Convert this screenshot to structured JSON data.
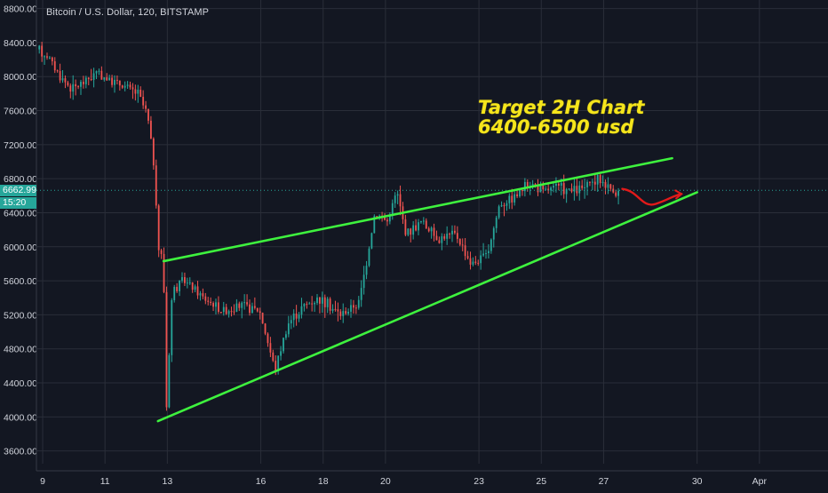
{
  "header": {
    "symbol_title": "Bitcoin / U.S. Dollar, 120, BITSTAMP"
  },
  "annotation": {
    "line1": "Target 2H Chart",
    "line2": "6400-6500 usd",
    "color": "#f5e51c"
  },
  "last_price": {
    "value": "6662.99",
    "countdown": "15:20",
    "color": "#26a69a"
  },
  "colors": {
    "background": "#131722",
    "grid": "#2a2e39",
    "up": "#26a69a",
    "down": "#ef5350",
    "trendline": "#3ef23e",
    "projection": "#e31a1a",
    "axis_text": "#d1d4dc"
  },
  "chart_data": {
    "type": "candlestick",
    "title": "Bitcoin / U.S. Dollar, 120, BITSTAMP",
    "y_axis": {
      "ticks": [
        "8800.00",
        "8400.00",
        "8000.00",
        "7600.00",
        "7200.00",
        "6800.00",
        "6400.00",
        "6000.00",
        "5600.00",
        "5200.00",
        "4800.00",
        "4400.00",
        "4000.00",
        "3600.00"
      ],
      "range": [
        3450,
        8900
      ],
      "position": "right"
    },
    "x_axis": {
      "ticks": [
        {
          "label": "9",
          "day": 9
        },
        {
          "label": "11",
          "day": 11
        },
        {
          "label": "13",
          "day": 13
        },
        {
          "label": "16",
          "day": 16
        },
        {
          "label": "18",
          "day": 18
        },
        {
          "label": "20",
          "day": 20
        },
        {
          "label": "23",
          "day": 23
        },
        {
          "label": "25",
          "day": 25
        },
        {
          "label": "27",
          "day": 27
        },
        {
          "label": "30",
          "day": 30
        },
        {
          "label": "Apr",
          "day": 32
        }
      ],
      "range": [
        8.8,
        34.2
      ]
    },
    "price_path": [
      [
        8.85,
        8320
      ],
      [
        9.2,
        8250
      ],
      [
        9.6,
        8000
      ],
      [
        10.0,
        7850
      ],
      [
        10.4,
        7950
      ],
      [
        10.8,
        8050
      ],
      [
        11.2,
        7950
      ],
      [
        11.6,
        7900
      ],
      [
        12.1,
        7800
      ],
      [
        12.4,
        7550
      ],
      [
        12.6,
        7000
      ],
      [
        12.75,
        6000
      ],
      [
        12.85,
        5900
      ],
      [
        12.95,
        5400
      ],
      [
        13.0,
        4000
      ],
      [
        13.2,
        5500
      ],
      [
        13.6,
        5600
      ],
      [
        14.2,
        5400
      ],
      [
        14.8,
        5250
      ],
      [
        15.4,
        5300
      ],
      [
        16.0,
        5250
      ],
      [
        16.5,
        4550
      ],
      [
        16.9,
        5100
      ],
      [
        17.4,
        5300
      ],
      [
        17.9,
        5400
      ],
      [
        18.6,
        5200
      ],
      [
        19.2,
        5350
      ],
      [
        19.7,
        6400
      ],
      [
        20.1,
        6300
      ],
      [
        20.4,
        6650
      ],
      [
        20.7,
        6150
      ],
      [
        21.2,
        6300
      ],
      [
        21.7,
        6100
      ],
      [
        22.3,
        6150
      ],
      [
        22.8,
        5800
      ],
      [
        23.3,
        5900
      ],
      [
        23.7,
        6500
      ],
      [
        24.2,
        6600
      ],
      [
        24.7,
        6750
      ],
      [
        25.1,
        6650
      ],
      [
        25.5,
        6700
      ],
      [
        26.0,
        6650
      ],
      [
        26.5,
        6700
      ],
      [
        26.9,
        6800
      ],
      [
        27.2,
        6700
      ],
      [
        27.5,
        6640
      ]
    ],
    "trendlines": [
      {
        "name": "upper",
        "from": [
          12.88,
          5830
        ],
        "to": [
          29.2,
          7040
        ]
      },
      {
        "name": "lower",
        "from": [
          12.7,
          3950
        ],
        "to": [
          30.0,
          6640
        ]
      }
    ],
    "projection": {
      "from": [
        27.6,
        6680
      ],
      "to": [
        29.5,
        6620
      ]
    },
    "last_price_line": 6662.99
  }
}
